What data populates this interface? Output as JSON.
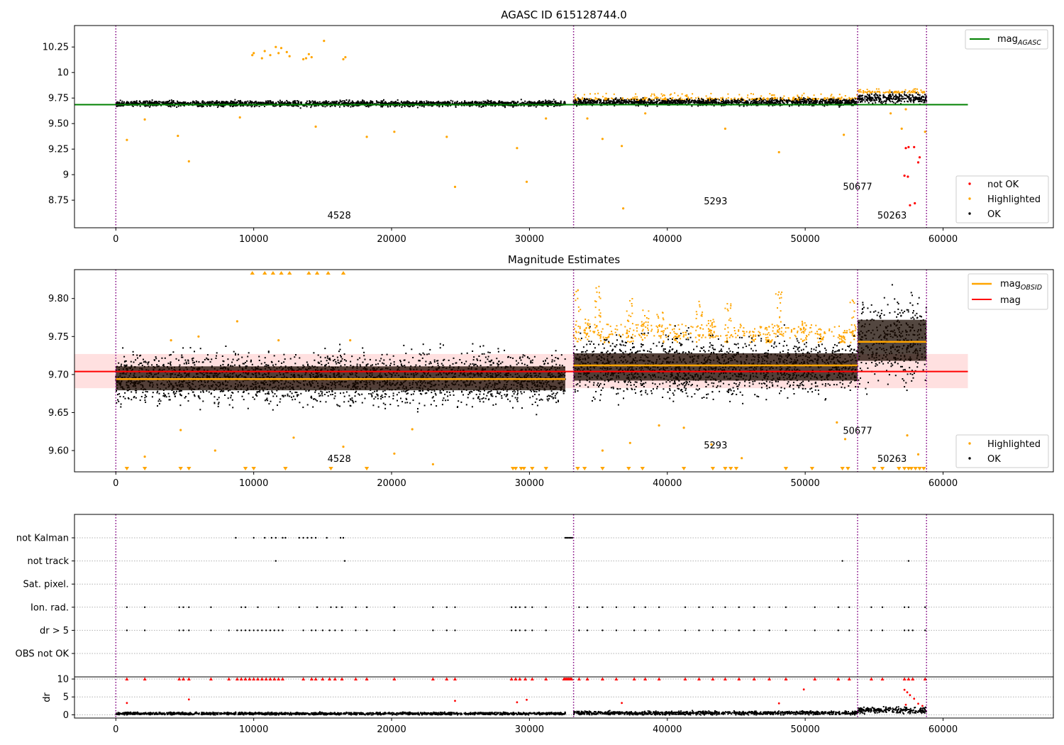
{
  "chart_data": [
    {
      "type": "scatter",
      "title": "AGASC ID 615128744.0",
      "xlim": [
        -3000,
        68000
      ],
      "ylim": [
        8.48,
        10.46
      ],
      "xticks": [
        0,
        10000,
        20000,
        30000,
        40000,
        50000,
        60000
      ],
      "yticks": [
        8.75,
        9.0,
        9.25,
        9.5,
        9.75,
        10.0,
        10.25
      ],
      "obsid_boundaries": [
        0,
        33200,
        53800,
        58800
      ],
      "obsid_labels": [
        {
          "text": "4528",
          "x": 16200,
          "y": 8.57
        },
        {
          "text": "5293",
          "x": 43500,
          "y": 8.71
        },
        {
          "text": "50677",
          "x": 53800,
          "y": 8.85
        },
        {
          "text": "50263",
          "x": 56300,
          "y": 8.57
        }
      ],
      "mag_agasc": {
        "value": 9.685,
        "x_range": [
          -3000,
          61800
        ]
      },
      "ok_segments": [
        {
          "x_range": [
            0,
            32600
          ],
          "center": 9.695,
          "spread": 0.03
        },
        {
          "x_range": [
            33200,
            53800
          ],
          "center": 9.71,
          "spread": 0.035
        },
        {
          "x_range": [
            53800,
            58800
          ],
          "center": 9.745,
          "spread": 0.05
        }
      ],
      "series": [
        {
          "name": "not OK",
          "color": "#ff0000",
          "points": [
            [
              57300,
              9.26
            ],
            [
              57500,
              9.27
            ],
            [
              57900,
              9.27
            ],
            [
              57200,
              8.99
            ],
            [
              57450,
              8.98
            ],
            [
              57600,
              8.7
            ],
            [
              57950,
              8.72
            ],
            [
              58200,
              9.12
            ],
            [
              58300,
              9.17
            ]
          ]
        },
        {
          "name": "Highlighted",
          "color": "#ffa500",
          "points": [
            [
              9900,
              10.17
            ],
            [
              10000,
              10.19
            ],
            [
              10600,
              10.14
            ],
            [
              10800,
              10.21
            ],
            [
              11200,
              10.17
            ],
            [
              11600,
              10.25
            ],
            [
              11800,
              10.19
            ],
            [
              12000,
              10.24
            ],
            [
              12400,
              10.2
            ],
            [
              12600,
              10.16
            ],
            [
              13600,
              10.13
            ],
            [
              13800,
              10.14
            ],
            [
              14000,
              10.18
            ],
            [
              14200,
              10.15
            ],
            [
              15100,
              10.31
            ],
            [
              16500,
              10.13
            ],
            [
              16650,
              10.15
            ],
            [
              800,
              9.34
            ],
            [
              2100,
              9.54
            ],
            [
              4500,
              9.38
            ],
            [
              5300,
              9.13
            ],
            [
              9000,
              9.56
            ],
            [
              14500,
              9.47
            ],
            [
              18200,
              9.37
            ],
            [
              20200,
              9.42
            ],
            [
              24000,
              9.37
            ],
            [
              24600,
              8.88
            ],
            [
              29100,
              9.26
            ],
            [
              29800,
              8.93
            ],
            [
              31200,
              9.55
            ],
            [
              34200,
              9.55
            ],
            [
              35300,
              9.35
            ],
            [
              36700,
              9.28
            ],
            [
              36800,
              8.67
            ],
            [
              38400,
              9.6
            ],
            [
              44200,
              9.45
            ],
            [
              48100,
              9.22
            ],
            [
              52800,
              9.39
            ],
            [
              56200,
              9.6
            ],
            [
              57000,
              9.45
            ],
            [
              57300,
              9.64
            ],
            [
              58700,
              9.42
            ]
          ]
        },
        {
          "name": "OK",
          "color": "#000000"
        }
      ],
      "legends": [
        {
          "position": "top-right",
          "entries": [
            {
              "label": "mag",
              "sub": "AGASC",
              "kind": "line",
              "color": "#008000"
            }
          ]
        },
        {
          "position": "lower-right",
          "entries": [
            {
              "label": "not OK",
              "kind": "dot",
              "color": "#ff0000"
            },
            {
              "label": "Highlighted",
              "kind": "dot",
              "color": "#ffa500"
            },
            {
              "label": "OK",
              "kind": "dot",
              "color": "#000000"
            }
          ]
        }
      ]
    },
    {
      "type": "scatter",
      "title": "Magnitude Estimates",
      "xlim": [
        -3000,
        68000
      ],
      "ylim": [
        9.572,
        9.838
      ],
      "xticks": [
        0,
        10000,
        20000,
        30000,
        40000,
        50000,
        60000
      ],
      "yticks": [
        9.6,
        9.65,
        9.7,
        9.75,
        9.8
      ],
      "obsid_boundaries": [
        0,
        33200,
        53800,
        58800
      ],
      "obsid_labels": [
        {
          "text": "4528",
          "x": 16200,
          "y": 9.585
        },
        {
          "text": "5293",
          "x": 43500,
          "y": 9.603
        },
        {
          "text": "50677",
          "x": 53800,
          "y": 9.622
        },
        {
          "text": "50263",
          "x": 56300,
          "y": 9.585
        }
      ],
      "mag": {
        "value": 9.704,
        "band": [
          9.682,
          9.727
        ],
        "x_range": [
          -3000,
          61800
        ]
      },
      "mag_obsid": [
        {
          "x_range": [
            0,
            32600
          ],
          "value": 9.694
        },
        {
          "x_range": [
            33200,
            53800
          ],
          "value": 9.712
        },
        {
          "x_range": [
            53800,
            58800
          ],
          "value": 9.743
        }
      ],
      "ok_segments": [
        {
          "x_range": [
            0,
            32600
          ],
          "center": 9.695,
          "spread": 0.035
        },
        {
          "x_range": [
            33200,
            53800
          ],
          "center": 9.71,
          "spread": 0.04
        },
        {
          "x_range": [
            53800,
            58800
          ],
          "center": 9.745,
          "spread": 0.06
        }
      ],
      "series": [
        {
          "name": "Highlighted",
          "color": "#ffa500",
          "points": [
            [
              4000,
              9.745
            ],
            [
              6000,
              9.75
            ],
            [
              8800,
              9.77
            ],
            [
              11800,
              9.745
            ],
            [
              17000,
              9.745
            ],
            [
              4700,
              9.627
            ],
            [
              2100,
              9.592
            ],
            [
              7200,
              9.6
            ],
            [
              12900,
              9.617
            ],
            [
              16500,
              9.605
            ],
            [
              20200,
              9.596
            ],
            [
              23000,
              9.582
            ],
            [
              21500,
              9.628
            ],
            [
              35300,
              9.6
            ],
            [
              37300,
              9.61
            ],
            [
              39400,
              9.633
            ],
            [
              41200,
              9.63
            ],
            [
              43200,
              9.608
            ],
            [
              45400,
              9.59
            ],
            [
              52300,
              9.637
            ],
            [
              52900,
              9.615
            ],
            [
              57400,
              9.62
            ],
            [
              58200,
              9.595
            ]
          ]
        },
        {
          "name": "OK",
          "color": "#000000"
        }
      ],
      "highlight_columns_x": [
        33500,
        34200,
        35000,
        35600,
        37300,
        38400,
        39500,
        40700,
        42300,
        43200,
        44400,
        46200,
        47400,
        48100,
        49900,
        51100,
        52700,
        53400
      ],
      "clipped_high_x": [
        9900,
        10800,
        11400,
        12000,
        12600,
        14000,
        14600,
        15400,
        16500
      ],
      "clipped_low_x": [
        800,
        2100,
        4700,
        5300,
        9400,
        10000,
        12300,
        15600,
        18200,
        28800,
        29000,
        29400,
        29600,
        30200,
        31200,
        33500,
        34000,
        35300,
        37200,
        38200,
        41200,
        43300,
        44200,
        44600,
        45000,
        48600,
        50500,
        52700,
        53100,
        55000,
        55600,
        56800,
        57200,
        57500,
        57700,
        58000,
        58300,
        58600
      ],
      "legends": [
        {
          "position": "top-right",
          "entries": [
            {
              "label": "mag",
              "sub": "OBSID",
              "kind": "line",
              "color": "#ffa500"
            },
            {
              "label": "mag",
              "kind": "line",
              "color": "#ff0000"
            }
          ]
        },
        {
          "position": "lower-right",
          "entries": [
            {
              "label": "Highlighted",
              "kind": "dot",
              "color": "#ffa500"
            },
            {
              "label": "OK",
              "kind": "dot",
              "color": "#000000"
            }
          ]
        }
      ]
    },
    {
      "type": "scatter",
      "title": "",
      "xlim": [
        -3000,
        68000
      ],
      "xticks": [
        0,
        10000,
        20000,
        30000,
        40000,
        50000,
        60000
      ],
      "obsid_boundaries": [
        0,
        33200,
        53800,
        58800
      ],
      "flags": [
        {
          "label": "not Kalman",
          "x": [
            8700,
            10000,
            10800,
            11300,
            11600,
            12100,
            12300,
            13300,
            13600,
            13900,
            14200,
            14500,
            15300,
            16300,
            16500,
            32600,
            32700,
            32800,
            32900,
            33000,
            33100
          ]
        },
        {
          "label": "not track",
          "x": [
            11600,
            16600,
            52700,
            57500
          ]
        },
        {
          "label": "Sat. pixel.",
          "x": []
        },
        {
          "label": "Ion. rad.",
          "x": [
            800,
            2100,
            4600,
            4900,
            5300,
            6900,
            9100,
            9400,
            10300,
            11800,
            13300,
            14600,
            15600,
            16000,
            16400,
            17400,
            18200,
            20200,
            23000,
            24000,
            24600,
            28700,
            29000,
            29300,
            29700,
            30200,
            31200,
            33600,
            34200,
            35300,
            36300,
            37600,
            38400,
            39400,
            41300,
            42300,
            43300,
            44200,
            45200,
            46300,
            47400,
            48600,
            50700,
            52400,
            53200,
            54800,
            55600,
            57200,
            57500,
            58700
          ]
        },
        {
          "label": "dr > 5",
          "x": [
            800,
            2100,
            4600,
            4900,
            5300,
            6900,
            8200,
            8800,
            9100,
            9400,
            9700,
            10000,
            10300,
            10600,
            10900,
            11200,
            11500,
            11800,
            12100,
            13600,
            14200,
            14500,
            15000,
            15500,
            15900,
            16400,
            17400,
            18200,
            20200,
            23000,
            24000,
            24600,
            28700,
            29000,
            29300,
            29700,
            30200,
            31200,
            33600,
            34200,
            35300,
            36300,
            37600,
            38400,
            39400,
            41300,
            42300,
            43300,
            44200,
            45200,
            46300,
            47400,
            48600,
            50700,
            52400,
            53200,
            54800,
            55600,
            57200,
            57500,
            57800,
            58700
          ]
        },
        {
          "label": "OBS not OK",
          "x": []
        }
      ],
      "dr": {
        "ylabel": "dr",
        "ylim": [
          -0.9,
          10.6
        ],
        "yticks": [
          0,
          5,
          10
        ],
        "clip_value": 10,
        "ok_segments": [
          {
            "x_range": [
              0,
              32600
            ],
            "center": 0.35,
            "spread": 0.35
          },
          {
            "x_range": [
              33200,
              53800
            ],
            "center": 0.5,
            "spread": 0.5
          },
          {
            "x_range": [
              53800,
              58800
            ],
            "center": 1.3,
            "spread": 0.9
          }
        ],
        "red_points": [
          [
            800,
            3.3
          ],
          [
            5300,
            4.3
          ],
          [
            24600,
            3.9
          ],
          [
            29100,
            3.5
          ],
          [
            29800,
            4.2
          ],
          [
            36700,
            3.3
          ],
          [
            48100,
            3.2
          ],
          [
            49900,
            7.1
          ],
          [
            57200,
            7.0
          ],
          [
            57400,
            6.3
          ],
          [
            57600,
            5.5
          ],
          [
            57900,
            4.5
          ],
          [
            58200,
            3.1
          ],
          [
            57300,
            2.8
          ],
          [
            58500,
            2.5
          ]
        ]
      }
    }
  ]
}
